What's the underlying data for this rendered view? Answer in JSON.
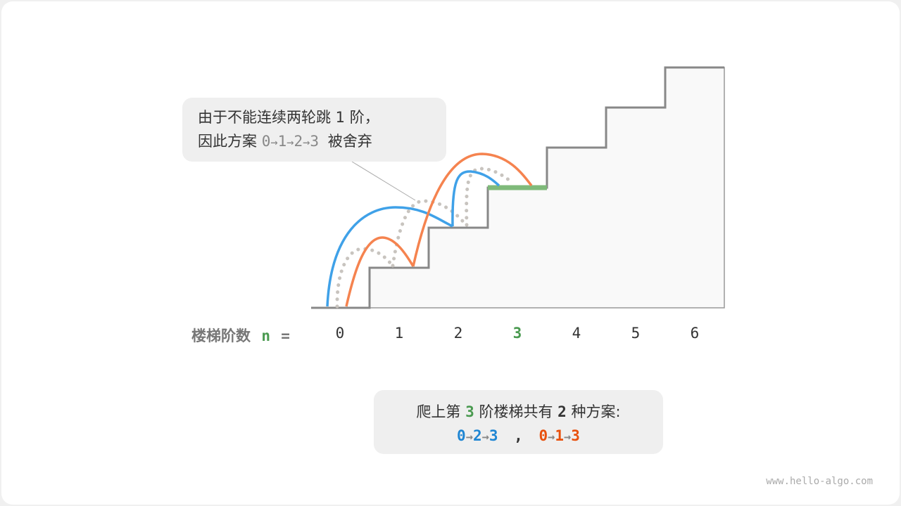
{
  "callout": {
    "line1": "由于不能连续两轮跳 1 阶，",
    "line2_prefix": "因此方案",
    "path": [
      "0",
      "1",
      "2",
      "3"
    ],
    "line2_suffix": "被舍弃"
  },
  "axis": {
    "label": "楼梯阶数",
    "var": "n",
    "eq": "=",
    "ticks": [
      "0",
      "1",
      "2",
      "3",
      "4",
      "5",
      "6"
    ],
    "highlight_index": 3
  },
  "summary": {
    "prefix": "爬上第",
    "step": "3",
    "middle": "阶楼梯共有",
    "count": "2",
    "suffix": "种方案:",
    "scheme1": [
      "0",
      "2",
      "3"
    ],
    "sep": ",",
    "scheme2": [
      "0",
      "1",
      "3"
    ]
  },
  "arrow_glyph": "→",
  "watermark": "www.hello-algo.com",
  "colors": {
    "blue": "#3fa1e8",
    "orange": "#f5834f",
    "green": "#7fba7a",
    "gray": "#c8c4bf",
    "scheme1": "#1f86d3",
    "scheme2": "#e8510e",
    "step_green": "#4a9a50"
  }
}
